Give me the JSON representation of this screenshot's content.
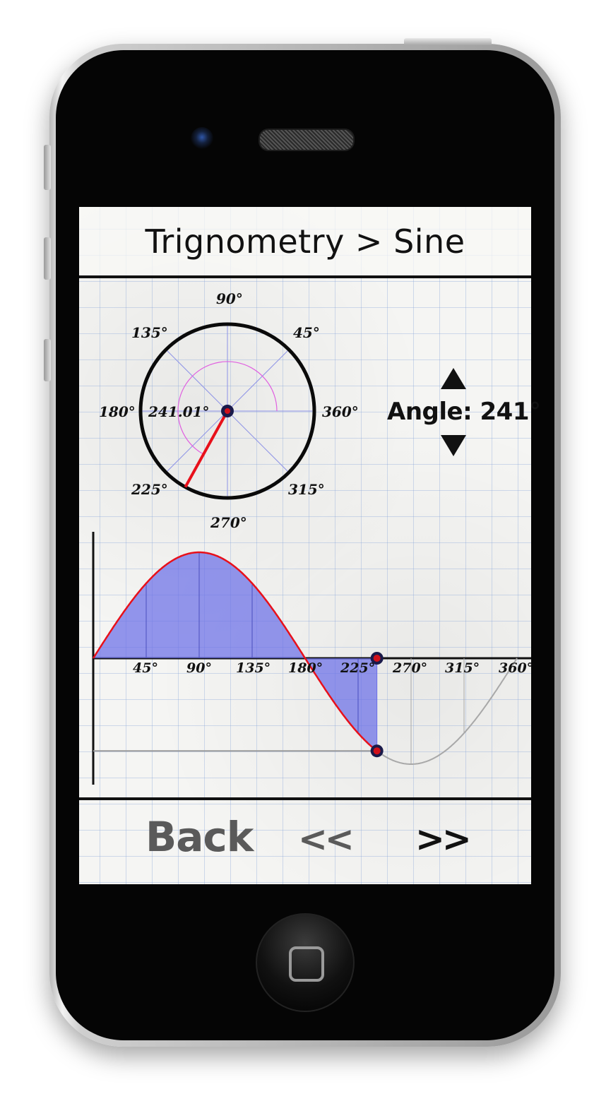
{
  "header": {
    "title": "Trignometry > Sine"
  },
  "unit_circle": {
    "labels": [
      "90°",
      "45°",
      "135°",
      "180°",
      "360°",
      "225°",
      "315°",
      "270°"
    ],
    "current_angle_label": "241.01°",
    "angle_deg": 241.01
  },
  "angle_control": {
    "readout": "Angle: 241°",
    "up_icon": "triangle-up-icon",
    "down_icon": "triangle-down-icon"
  },
  "chart_data": {
    "type": "area",
    "function": "sin(x)",
    "x": [
      0,
      45,
      90,
      135,
      180,
      225,
      241,
      270,
      315,
      360
    ],
    "y": [
      0,
      0.707,
      1,
      0.707,
      0,
      -0.707,
      -0.875,
      -1,
      -0.707,
      0
    ],
    "tick_labels": [
      "45°",
      "90°",
      "135°",
      "180°",
      "225°",
      "270°",
      "315°",
      "360°"
    ],
    "shaded_to_deg": 241,
    "xlim": [
      0,
      360
    ],
    "ylim": [
      -1,
      1
    ],
    "colors": {
      "curve": "#e8101a",
      "fill": "#6b6fe8",
      "remaining_curve": "#a8a8a8",
      "marker": "#1a1a4a",
      "marker_center": "#d0101a"
    }
  },
  "footer": {
    "back_label": "Back",
    "prev_label": "<<",
    "next_label": ">>"
  },
  "colors": {
    "ink": "#111111",
    "grid": "#8aa2d8",
    "button_disabled": "#5a5a5a"
  }
}
